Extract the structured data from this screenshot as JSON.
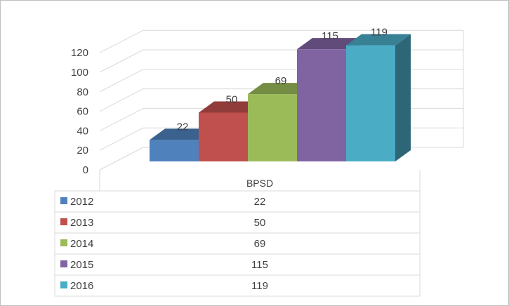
{
  "chart_data": {
    "type": "bar",
    "title": "",
    "xlabel": "",
    "ylabel": "",
    "categories": [
      "BPSD"
    ],
    "ylim": [
      0,
      120
    ],
    "yticks": [
      0,
      20,
      40,
      60,
      80,
      100,
      120
    ],
    "grid": true,
    "three_d": true,
    "data_table": true,
    "series": [
      {
        "name": "2012",
        "values": [
          22
        ],
        "color": "#4f81bd"
      },
      {
        "name": "2013",
        "values": [
          50
        ],
        "color": "#c0504d"
      },
      {
        "name": "2014",
        "values": [
          69
        ],
        "color": "#9bbb59"
      },
      {
        "name": "2015",
        "values": [
          115
        ],
        "color": "#8064a2"
      },
      {
        "name": "2016",
        "values": [
          119
        ],
        "color": "#4bacc6"
      }
    ]
  }
}
